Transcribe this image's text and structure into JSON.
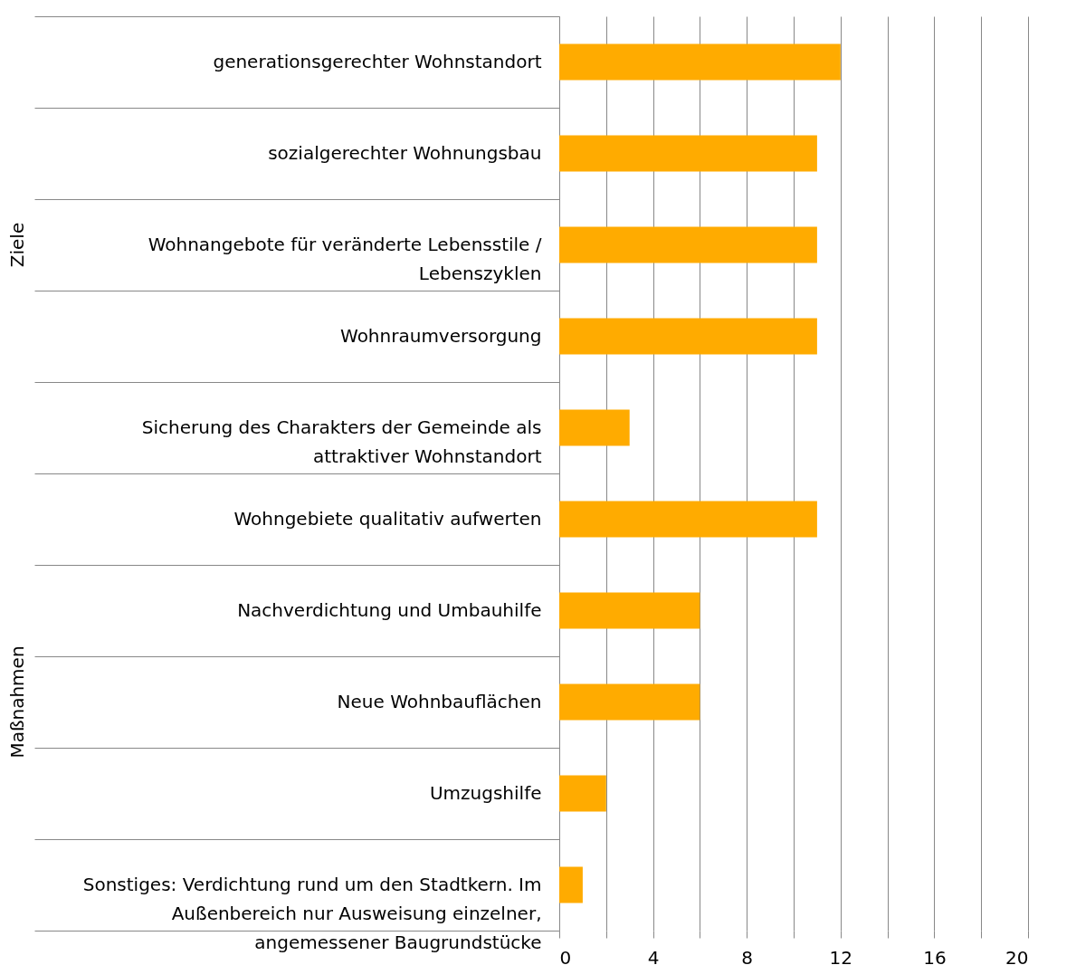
{
  "chart_data": {
    "type": "bar",
    "orientation": "horizontal",
    "categories": [
      "generationsgerechter Wohnstandort",
      "sozialgerechter Wohnungsbau",
      "Wohnangebote für veränderte Lebensstile / Lebenszyklen",
      "Wohnraumversorgung",
      "Sicherung des Charakters der Gemeinde als attraktiver Wohnstandort",
      "Wohngebiete qualitativ aufwerten",
      "Nachverdichtung und Umbauhilfe",
      "Neue Wohnbauflächen",
      "Umzugshilfe",
      "Sonstiges: Verdichtung rund um den Stadtkern. Im Außenbereich nur Ausweisung einzelner, angemessener Baugrundstücke"
    ],
    "values": [
      12,
      11,
      11,
      11,
      3,
      11,
      6,
      6,
      2,
      1
    ],
    "color": "#ffab00",
    "xlim": [
      0,
      20
    ],
    "xticks": [
      0,
      {
        "value": 2,
        "label": null
      },
      4,
      {
        "value": 6,
        "label": null
      },
      8,
      {
        "value": 10,
        "label": null
      },
      12,
      {
        "value": 14,
        "label": null
      },
      16,
      {
        "value": 18,
        "label": null
      },
      20
    ],
    "grid": "x",
    "annotations": [
      "Ziele",
      "Maßnahmen"
    ]
  }
}
